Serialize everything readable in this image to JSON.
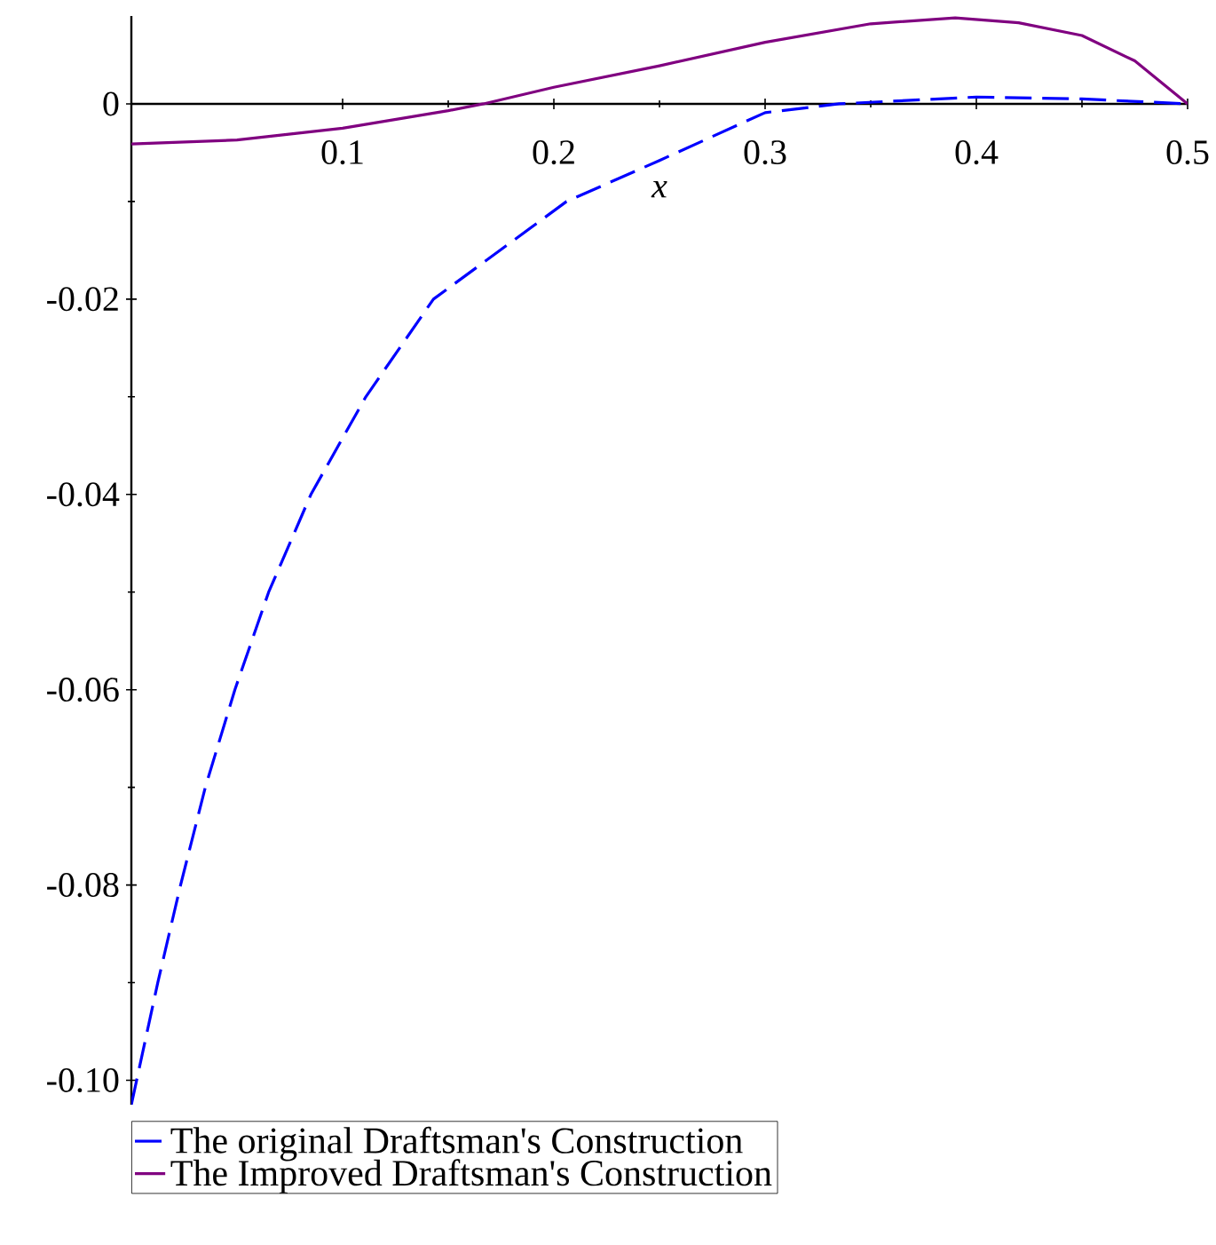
{
  "chart_data": {
    "type": "line",
    "xlabel": "x",
    "xlim": [
      0,
      0.5
    ],
    "ylim": [
      -0.1025,
      0.009
    ],
    "xticks": [
      0.1,
      0.2,
      0.3,
      0.4,
      0.5
    ],
    "yticks": [
      {
        "value": -0.1,
        "label": "-0.10"
      },
      {
        "value": -0.08,
        "label": "-0.08"
      },
      {
        "value": -0.06,
        "label": "-0.06"
      },
      {
        "value": -0.04,
        "label": "-0.04"
      },
      {
        "value": -0.02,
        "label": "-0.02"
      },
      0
    ],
    "legend": "bottom",
    "grid": false,
    "series": [
      {
        "name": "The original Draftsman's Construction",
        "color": "#0000ff",
        "line_style": "dashed",
        "x": [
          0,
          0.0125,
          0.0233,
          0.035,
          0.049,
          0.065,
          0.085,
          0.111,
          0.143,
          0.206,
          0.25,
          0.3,
          0.335,
          0.4,
          0.45,
          0.5
        ],
        "values": [
          -0.1025,
          -0.09,
          -0.08,
          -0.07,
          -0.06,
          -0.05,
          -0.04,
          -0.03,
          -0.02,
          -0.01,
          -0.0058,
          -0.0009,
          0,
          0.0007,
          0.0005,
          0
        ]
      },
      {
        "name": "The Improved Draftsman's Construction",
        "color": "#800080",
        "line_style": "solid",
        "x": [
          0,
          0.05,
          0.1,
          0.15,
          0.1667,
          0.2,
          0.25,
          0.3,
          0.35,
          0.39,
          0.42,
          0.45,
          0.475,
          0.5
        ],
        "values": [
          -0.0041,
          -0.0037,
          -0.0025,
          -0.0007,
          0,
          0.0017,
          0.0039,
          0.0063,
          0.0082,
          0.0088,
          0.0083,
          0.007,
          0.0044,
          0
        ]
      }
    ]
  }
}
